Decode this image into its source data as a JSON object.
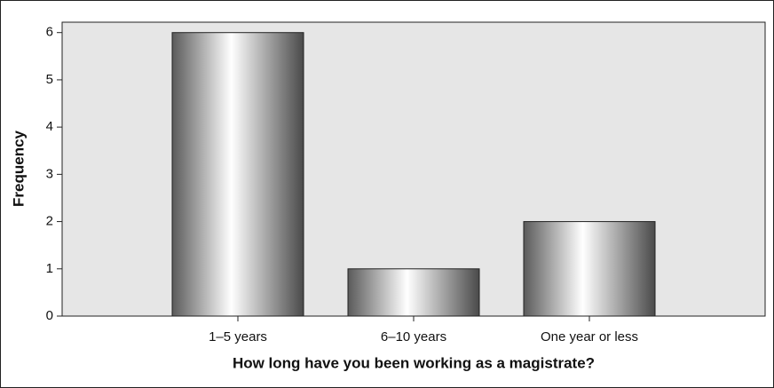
{
  "chart_data": {
    "type": "bar",
    "xlabel": "How long have you been working as a magistrate?",
    "ylabel": "Frequency",
    "categories": [
      "1–5 years",
      "6–10 years",
      "One year or less"
    ],
    "values": [
      6,
      1,
      2
    ],
    "ylim": [
      0,
      6.22
    ],
    "yticks": [
      0,
      1,
      2,
      3,
      4,
      5,
      6
    ],
    "grid": false
  }
}
